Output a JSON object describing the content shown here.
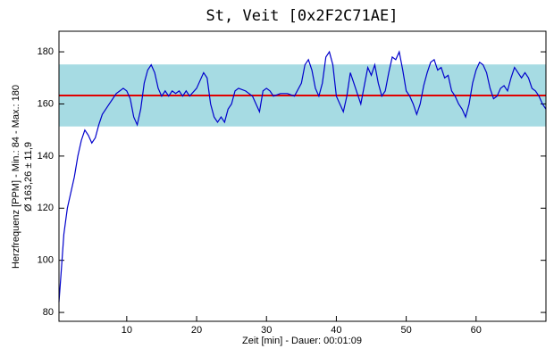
{
  "chart_data": {
    "type": "line",
    "title": "St, Veit [0x2F2C71AE]",
    "y_label": "Herzfrequenz [PPM] - Min.: 84 - Max.: 180",
    "y_label_2": "Ø 163,26 ± 11,9",
    "x_label": "Zeit [min] - Dauer: 00:01:09",
    "mean": 163.26,
    "sd": 11.9,
    "band_color": "#a6dbe3",
    "mean_color": "#e00000",
    "xlim": [
      0.3,
      70
    ],
    "ylim": [
      76.6,
      187.9
    ],
    "xticks": [
      10,
      20,
      30,
      40,
      50,
      60
    ],
    "yticks": [
      80,
      100,
      120,
      140,
      160,
      180
    ],
    "series": [
      {
        "name": "Herzfrequenz",
        "color": "#0000cc",
        "x": [
          0.3,
          0.6,
          1,
          1.5,
          2,
          2.5,
          3,
          3.5,
          4,
          4.5,
          5,
          5.5,
          6,
          6.5,
          7,
          7.5,
          8,
          8.5,
          9,
          9.5,
          10,
          10.5,
          11,
          11.5,
          12,
          12.5,
          13,
          13.5,
          14,
          14.5,
          15,
          15.5,
          16,
          16.5,
          17,
          17.5,
          18,
          18.5,
          19,
          20,
          21,
          21.5,
          22,
          22.5,
          23,
          23.5,
          24,
          24.5,
          25,
          25.5,
          26,
          27,
          28,
          28.5,
          29,
          29.5,
          30,
          30.5,
          31,
          32,
          33,
          34,
          35,
          35.5,
          36,
          36.5,
          37,
          37.5,
          38,
          38.5,
          39,
          39.5,
          40,
          40.5,
          41,
          41.5,
          42,
          42.5,
          43,
          43.5,
          44,
          44.5,
          45,
          45.5,
          46,
          46.5,
          47,
          47.5,
          48,
          48.5,
          49,
          49.5,
          50,
          50.5,
          51,
          51.5,
          52,
          52.5,
          53,
          53.5,
          54,
          54.5,
          55,
          55.5,
          56,
          56.5,
          57,
          57.5,
          58,
          58.5,
          59,
          59.5,
          60,
          60.5,
          61,
          61.5,
          62,
          62.5,
          63,
          63.5,
          64,
          64.5,
          65,
          65.5,
          66,
          66.5,
          67,
          67.5,
          68,
          68.5,
          69,
          69.5,
          70
        ],
        "values": [
          84,
          95,
          110,
          120,
          126,
          132,
          140,
          146,
          150,
          148,
          145,
          147,
          152,
          156,
          158,
          160,
          162,
          164,
          165,
          166,
          165,
          162,
          155,
          152,
          158,
          168,
          173,
          175,
          172,
          166,
          163,
          165,
          163,
          165,
          164,
          165,
          163,
          165,
          163,
          166,
          172,
          170,
          160,
          155,
          153,
          155,
          153,
          158,
          160,
          165,
          166,
          165,
          163,
          160,
          157,
          165,
          166,
          165,
          163,
          164,
          164,
          163,
          168,
          175,
          177,
          173,
          166,
          163,
          168,
          178,
          180,
          175,
          163,
          160,
          157,
          163,
          172,
          168,
          164,
          160,
          167,
          174,
          171,
          175,
          168,
          163,
          165,
          172,
          178,
          177,
          180,
          173,
          165,
          163,
          160,
          156,
          160,
          167,
          172,
          176,
          177,
          173,
          174,
          170,
          171,
          165,
          163,
          160,
          158,
          155,
          160,
          168,
          173,
          176,
          175,
          172,
          166,
          162,
          163,
          166,
          167,
          165,
          170,
          174,
          172,
          170,
          172,
          170,
          166,
          165,
          163,
          160,
          158
        ]
      }
    ]
  }
}
